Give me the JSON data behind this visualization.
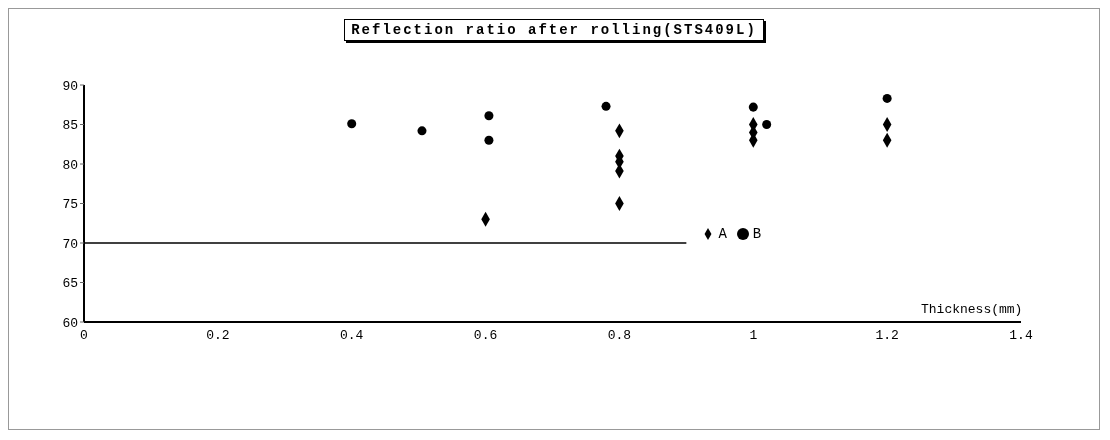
{
  "chart_data": {
    "type": "scatter",
    "title": "Reflection ratio after rolling(STS409L)",
    "xlabel": "Thickness(mm)",
    "xlim": [
      0,
      1.4
    ],
    "xticks": [
      0,
      0.2,
      0.4,
      0.6,
      0.8,
      1,
      1.2,
      1.4
    ],
    "ylim": [
      60,
      90
    ],
    "yticks": [
      60,
      65,
      70,
      75,
      80,
      85,
      90
    ],
    "legend": "bottom right",
    "grid": false,
    "series": [
      {
        "name": "A",
        "color": "#000000",
        "marker": "diamond",
        "x": [
          0.6,
          0.8,
          0.8,
          0.8,
          0.8,
          0.8,
          1.0,
          1.0,
          1.0,
          1.2,
          1.2
        ],
        "values": [
          73,
          84.2,
          81,
          80.3,
          79.1,
          75,
          85,
          84,
          83,
          85,
          83
        ]
      },
      {
        "name": "B",
        "color": "#000000",
        "marker": "circle",
        "x": [
          0.4,
          0.505,
          0.605,
          0.605,
          0.78,
          1.0,
          1.02,
          1.2
        ],
        "values": [
          85.1,
          84.2,
          86.1,
          83,
          87.3,
          87.2,
          85,
          88.3
        ]
      },
      {
        "type": "line",
        "color": "#000000",
        "marker": "none",
        "x": [
          0,
          0.9
        ],
        "values": [
          70,
          70
        ]
      }
    ]
  }
}
